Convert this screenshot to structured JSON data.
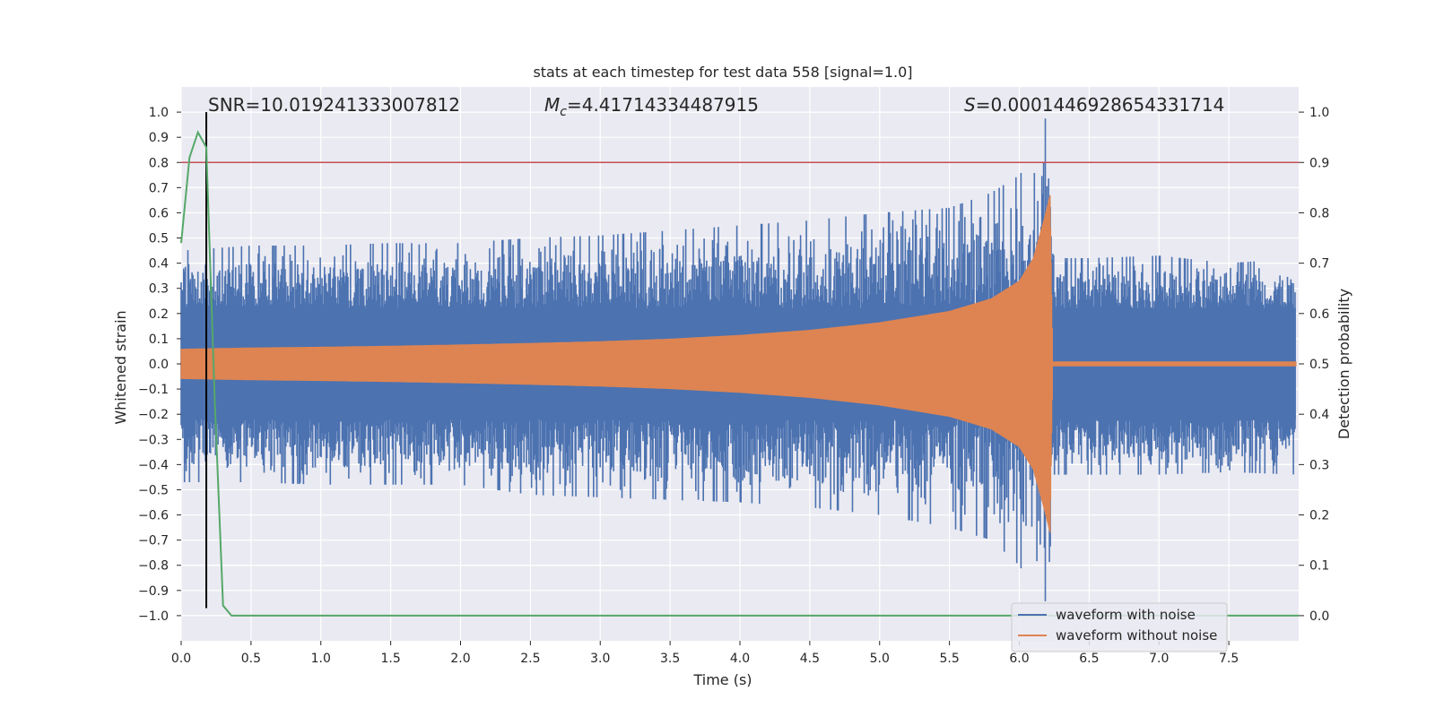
{
  "chart_data": {
    "type": "line",
    "title": "stats at each timestep for test data 558 [signal=1.0]",
    "xlabel": "Time (s)",
    "ylabel": "Whitened strain",
    "y2label": "Detection probability",
    "xlim": [
      0.0,
      8.0
    ],
    "ylim": [
      -1.1,
      1.1
    ],
    "y2lim": [
      -0.05,
      1.05
    ],
    "x_ticks": [
      0.0,
      0.5,
      1.0,
      1.5,
      2.0,
      2.5,
      3.0,
      3.5,
      4.0,
      4.5,
      5.0,
      5.5,
      6.0,
      6.5,
      7.0,
      7.5
    ],
    "x_tick_labels": [
      "0.0",
      "0.5",
      "1.0",
      "1.5",
      "2.0",
      "2.5",
      "3.0",
      "3.5",
      "4.0",
      "4.5",
      "5.0",
      "5.5",
      "6.0",
      "6.5",
      "7.0",
      "7.5"
    ],
    "y_ticks": [
      1.0,
      0.9,
      0.8,
      0.7,
      0.6,
      0.5,
      0.4,
      0.3,
      0.2,
      0.1,
      0.0,
      -0.1,
      -0.2,
      -0.3,
      -0.4,
      -0.5,
      -0.6,
      -0.7,
      -0.8,
      -0.9,
      -1.0
    ],
    "y_tick_labels": [
      "1.0",
      "0.9",
      "0.8",
      "0.7",
      "0.6",
      "0.5",
      "0.4",
      "0.3",
      "0.2",
      "0.1",
      "0.0",
      "−0.1",
      "−0.2",
      "−0.3",
      "−0.4",
      "−0.5",
      "−0.6",
      "−0.7",
      "−0.8",
      "−0.9",
      "−1.0"
    ],
    "y2_ticks": [
      1.0,
      0.9,
      0.8,
      0.7,
      0.6,
      0.5,
      0.4,
      0.3,
      0.2,
      0.1,
      0.0
    ],
    "y2_tick_labels": [
      "1.0",
      "0.9",
      "0.8",
      "0.7",
      "0.6",
      "0.5",
      "0.4",
      "0.3",
      "0.2",
      "0.1",
      "0.0"
    ],
    "grid": true,
    "legend_position": "bottom-right",
    "annotations": {
      "snr": "SNR=10.019241333007812",
      "mc_symbol": "M",
      "mc_sub": "c",
      "mc_value": "=4.41714334487915",
      "s_symbol": "S",
      "s_value": "=0.0001446928654331714"
    },
    "series": [
      {
        "name": "waveform with noise",
        "color": "#4c72b0",
        "axis": "left",
        "note_shape": "noise band envelope",
        "x": [
          0.0,
          0.5,
          1.0,
          1.5,
          2.0,
          2.5,
          3.0,
          3.5,
          4.0,
          4.5,
          5.0,
          5.5,
          5.8,
          6.0,
          6.1,
          6.2,
          6.25,
          6.5,
          7.0,
          7.5,
          8.0
        ],
        "upper": [
          0.45,
          0.47,
          0.47,
          0.48,
          0.48,
          0.5,
          0.51,
          0.53,
          0.55,
          0.57,
          0.6,
          0.62,
          0.68,
          0.75,
          0.82,
          1.0,
          0.42,
          0.42,
          0.43,
          0.4,
          0.42
        ],
        "lower": [
          -0.47,
          -0.47,
          -0.48,
          -0.48,
          -0.48,
          -0.52,
          -0.53,
          -0.54,
          -0.55,
          -0.57,
          -0.6,
          -0.65,
          -0.7,
          -0.8,
          -0.9,
          -0.95,
          -0.44,
          -0.44,
          -0.44,
          -0.43,
          -0.44
        ]
      },
      {
        "name": "waveform without noise",
        "color": "#dd8452",
        "axis": "left",
        "x": [
          0.0,
          0.5,
          1.0,
          1.5,
          2.0,
          2.5,
          3.0,
          3.5,
          4.0,
          4.5,
          5.0,
          5.5,
          5.8,
          6.0,
          6.1,
          6.18,
          6.22,
          6.24,
          6.3,
          7.0,
          8.0
        ],
        "amplitude": [
          0.06,
          0.065,
          0.068,
          0.072,
          0.077,
          0.083,
          0.09,
          0.1,
          0.115,
          0.135,
          0.165,
          0.21,
          0.26,
          0.33,
          0.42,
          0.58,
          0.67,
          0.01,
          0.01,
          0.01,
          0.01
        ]
      },
      {
        "name": "detection probability",
        "color": "#55a868",
        "axis": "right",
        "x": [
          0.0,
          0.06,
          0.12,
          0.18,
          0.24,
          0.3,
          0.36,
          0.4,
          8.0
        ],
        "y": [
          0.74,
          0.91,
          0.96,
          0.93,
          0.43,
          0.02,
          0.0,
          0.0,
          0.0
        ]
      }
    ],
    "hlines": [
      {
        "y": 0.8,
        "axis": "left",
        "color": "#c44e52"
      }
    ],
    "vlines": [
      {
        "x": 0.18,
        "ymin": -0.97,
        "ymax": 1.0,
        "color": "#000000"
      }
    ]
  }
}
